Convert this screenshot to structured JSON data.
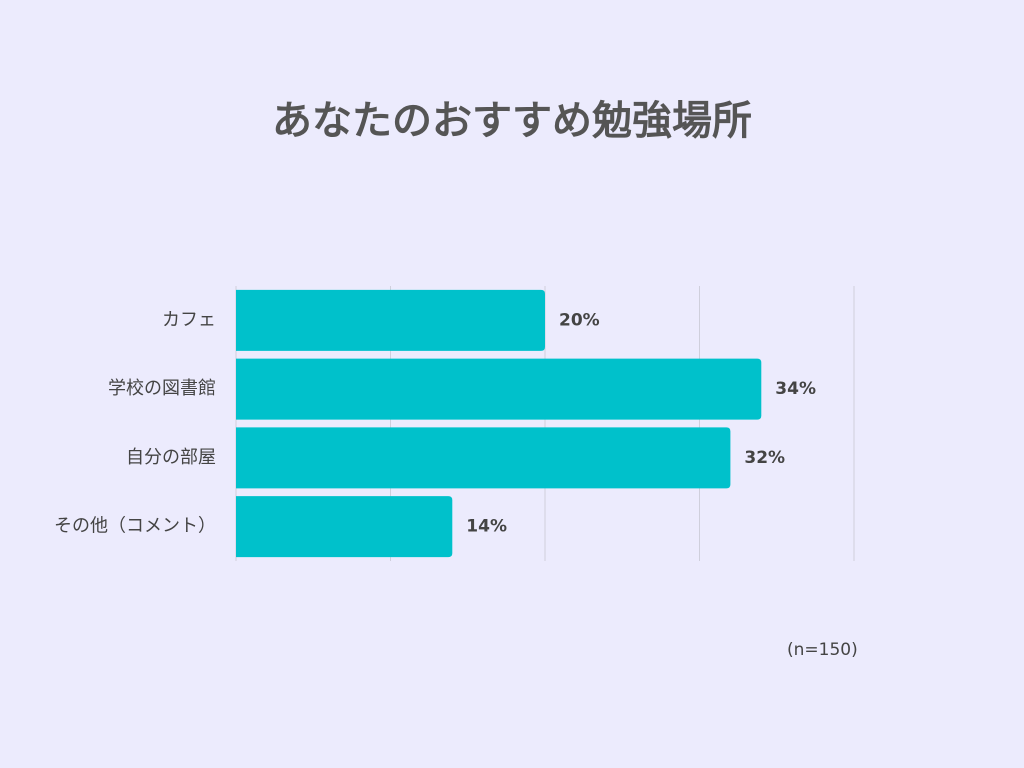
{
  "page": {
    "background": "#ecebfd"
  },
  "chart_data": {
    "type": "bar",
    "orientation": "horizontal",
    "title": "あなたのおすすめ勉強場所",
    "categories": [
      "カフェ",
      "学校の図書館",
      "自分の部屋",
      "その他（コメント）"
    ],
    "values": [
      20,
      34,
      32,
      14
    ],
    "value_labels": [
      "20%",
      "34%",
      "32%",
      "14%"
    ],
    "xlim": [
      0,
      40
    ],
    "grid": true,
    "bar_color": "#00c1cb",
    "note": "(n=150)"
  }
}
